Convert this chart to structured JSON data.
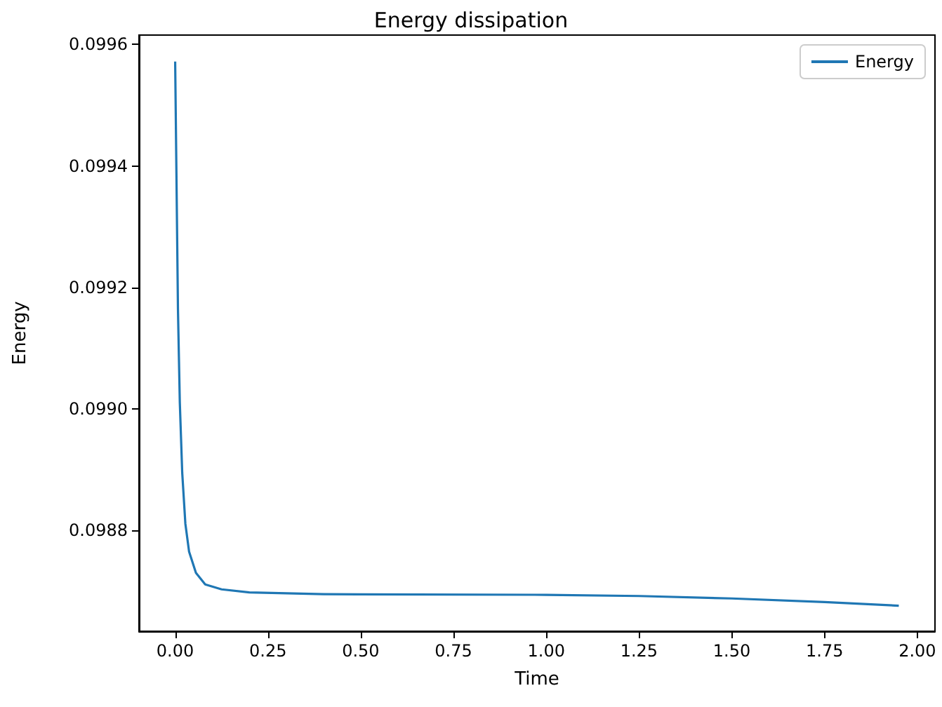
{
  "chart_data": {
    "type": "line",
    "title": "Energy dissipation",
    "xlabel": "Time",
    "ylabel": "Energy",
    "x": [
      0,
      0.0075,
      0.0125,
      0.019,
      0.0275,
      0.0375,
      0.056,
      0.081,
      0.125,
      0.2,
      0.4,
      1.0,
      1.25,
      1.5,
      1.75,
      1.95
    ],
    "series": [
      {
        "name": "Energy",
        "color": "#1f77b4",
        "values": [
          0.099572,
          0.099165,
          0.099011,
          0.098895,
          0.098811,
          0.098765,
          0.09873,
          0.098711,
          0.098703,
          0.098698,
          0.098695,
          0.098694,
          0.098692,
          0.098688,
          0.098682,
          0.098676
        ]
      }
    ],
    "xlim": [
      -0.0975,
      2.0475
    ],
    "xticks": [
      {
        "value": 0,
        "label": "0.00"
      },
      {
        "value": 0.25,
        "label": "0.25"
      },
      {
        "value": 0.5,
        "label": "0.50"
      },
      {
        "value": 0.75,
        "label": "0.75"
      },
      {
        "value": 1,
        "label": "1.00"
      },
      {
        "value": 1.25,
        "label": "1.25"
      },
      {
        "value": 1.5,
        "label": "1.50"
      },
      {
        "value": 1.75,
        "label": "1.75"
      },
      {
        "value": 2,
        "label": "2.00"
      }
    ],
    "ylim": [
      0.098634,
      0.0996155
    ],
    "yticks": [
      0.0988,
      {
        "value": 0.099,
        "label": "0.0990"
      },
      0.0992,
      0.0994,
      0.0996
    ],
    "grid": false,
    "legend": "top right",
    "marker": "none",
    "line_style": "solid"
  }
}
